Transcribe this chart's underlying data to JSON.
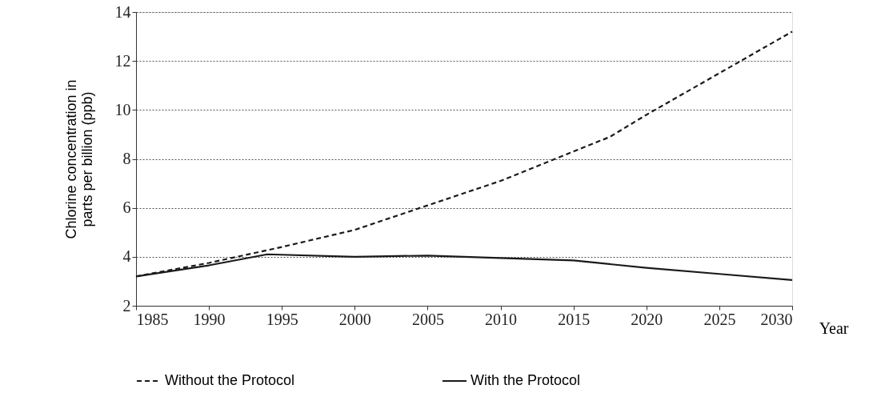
{
  "chart_data": {
    "type": "line",
    "xlabel": "Year",
    "ylabel": "Chlorine concentration in\nparts per billion (ppb)",
    "xlim": [
      1985,
      2030
    ],
    "xticks": [
      1985,
      1990,
      1995,
      2000,
      2005,
      2010,
      2015,
      2020,
      2025,
      2030
    ],
    "ylim": [
      2,
      14
    ],
    "yticks": [
      2,
      4,
      6,
      8,
      10,
      12,
      14
    ],
    "grid": "y",
    "legend": "bottom",
    "series": [
      {
        "name": "Without the Protocol",
        "color": "#1a1a1a",
        "line_style": "dashed",
        "x": [
          1985,
          1990,
          1995,
          2000,
          2005,
          2010,
          2015,
          2017.5,
          2020,
          2025,
          2030
        ],
        "values": [
          3.2,
          3.75,
          4.4,
          5.1,
          6.1,
          7.1,
          8.3,
          8.9,
          9.8,
          11.5,
          13.2
        ]
      },
      {
        "name": "With the Protocol",
        "color": "#1a1a1a",
        "line_style": "solid",
        "x": [
          1985,
          1990,
          1994,
          2000,
          2005,
          2010,
          2015,
          2020,
          2025,
          2030
        ],
        "values": [
          3.2,
          3.65,
          4.1,
          4.0,
          4.05,
          3.95,
          3.85,
          3.55,
          3.3,
          3.05
        ]
      }
    ]
  }
}
